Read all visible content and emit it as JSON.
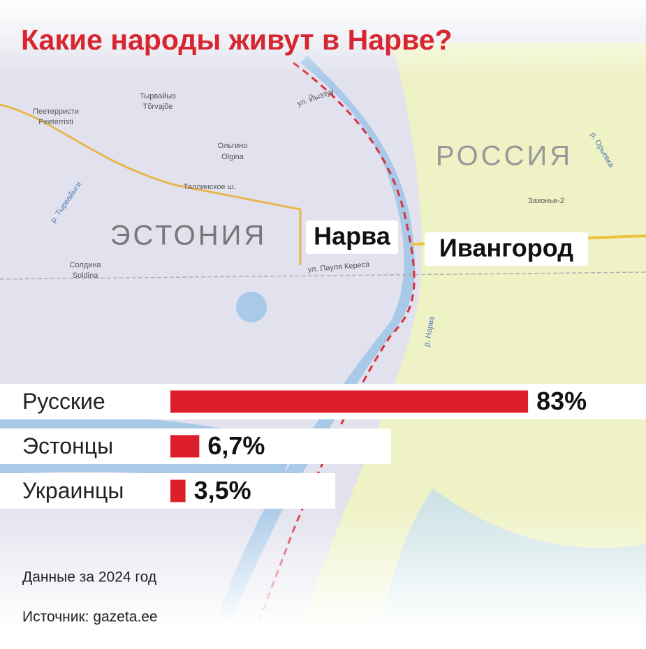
{
  "chart_data": {
    "type": "bar",
    "title": "Какие народы живут в Нарве?",
    "categories": [
      "Русские",
      "Эстонцы",
      "Украинцы"
    ],
    "values": [
      83,
      6.7,
      3.5
    ],
    "value_labels": [
      "83%",
      "6,7%",
      "3,5%"
    ],
    "color": "#dc1f2b",
    "note": "Данные за 2024 год",
    "source": "Источник: gazeta.ee"
  },
  "map": {
    "countries": [
      "ЭСТОНИЯ",
      "РОССИЯ"
    ],
    "cities": [
      "Нарва",
      "Ивангород"
    ],
    "labels": [
      "Пеетерристи",
      "Peeterristi",
      "Тырвайыэ",
      "Tõrvajõe",
      "Ольгино",
      "Olgina",
      "Таллинское ш.",
      "р. Тырвайыги",
      "Солдина",
      "Soldina",
      "ул. Пауля Кереса",
      "ул. Йыэзуу",
      "р. Нарва",
      "р. Орьевка",
      "Захонье-2"
    ]
  }
}
